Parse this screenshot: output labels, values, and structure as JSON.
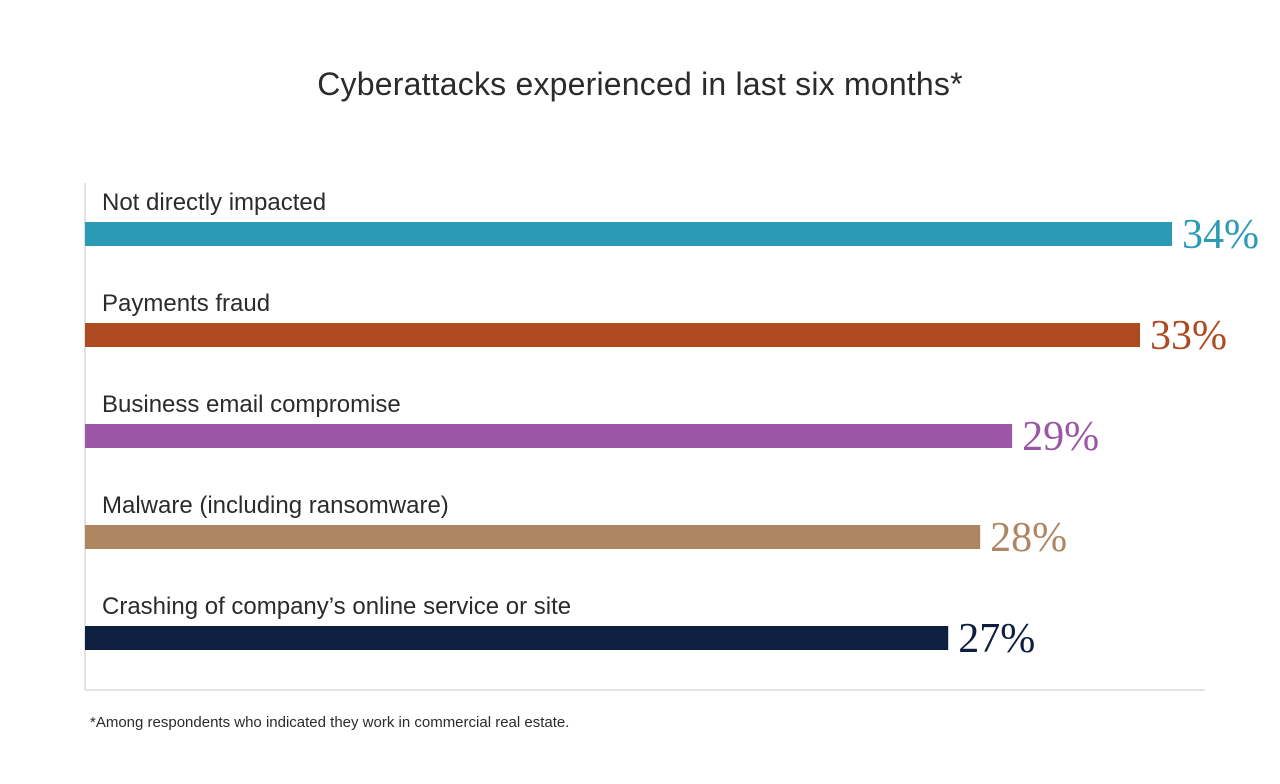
{
  "chart_data": {
    "type": "bar",
    "orientation": "horizontal",
    "title": "Cyberattacks experienced in last six months*",
    "categories": [
      "Not directly impacted",
      "Payments fraud",
      "Business email compromise",
      "Malware (including ransomware)",
      "Crashing of company’s online service or site"
    ],
    "values": [
      34,
      33,
      29,
      28,
      27
    ],
    "value_labels": [
      "34%",
      "33%",
      "29%",
      "28%",
      "27%"
    ],
    "unit": "%",
    "colors": [
      "#2b9ab5",
      "#ad4a22",
      "#9b57a6",
      "#ae8662",
      "#0f1f3f"
    ],
    "xlim": [
      0,
      34
    ],
    "grid": false,
    "legend": "none",
    "footnote": "*Among respondents who indicated they work in commercial real estate."
  }
}
